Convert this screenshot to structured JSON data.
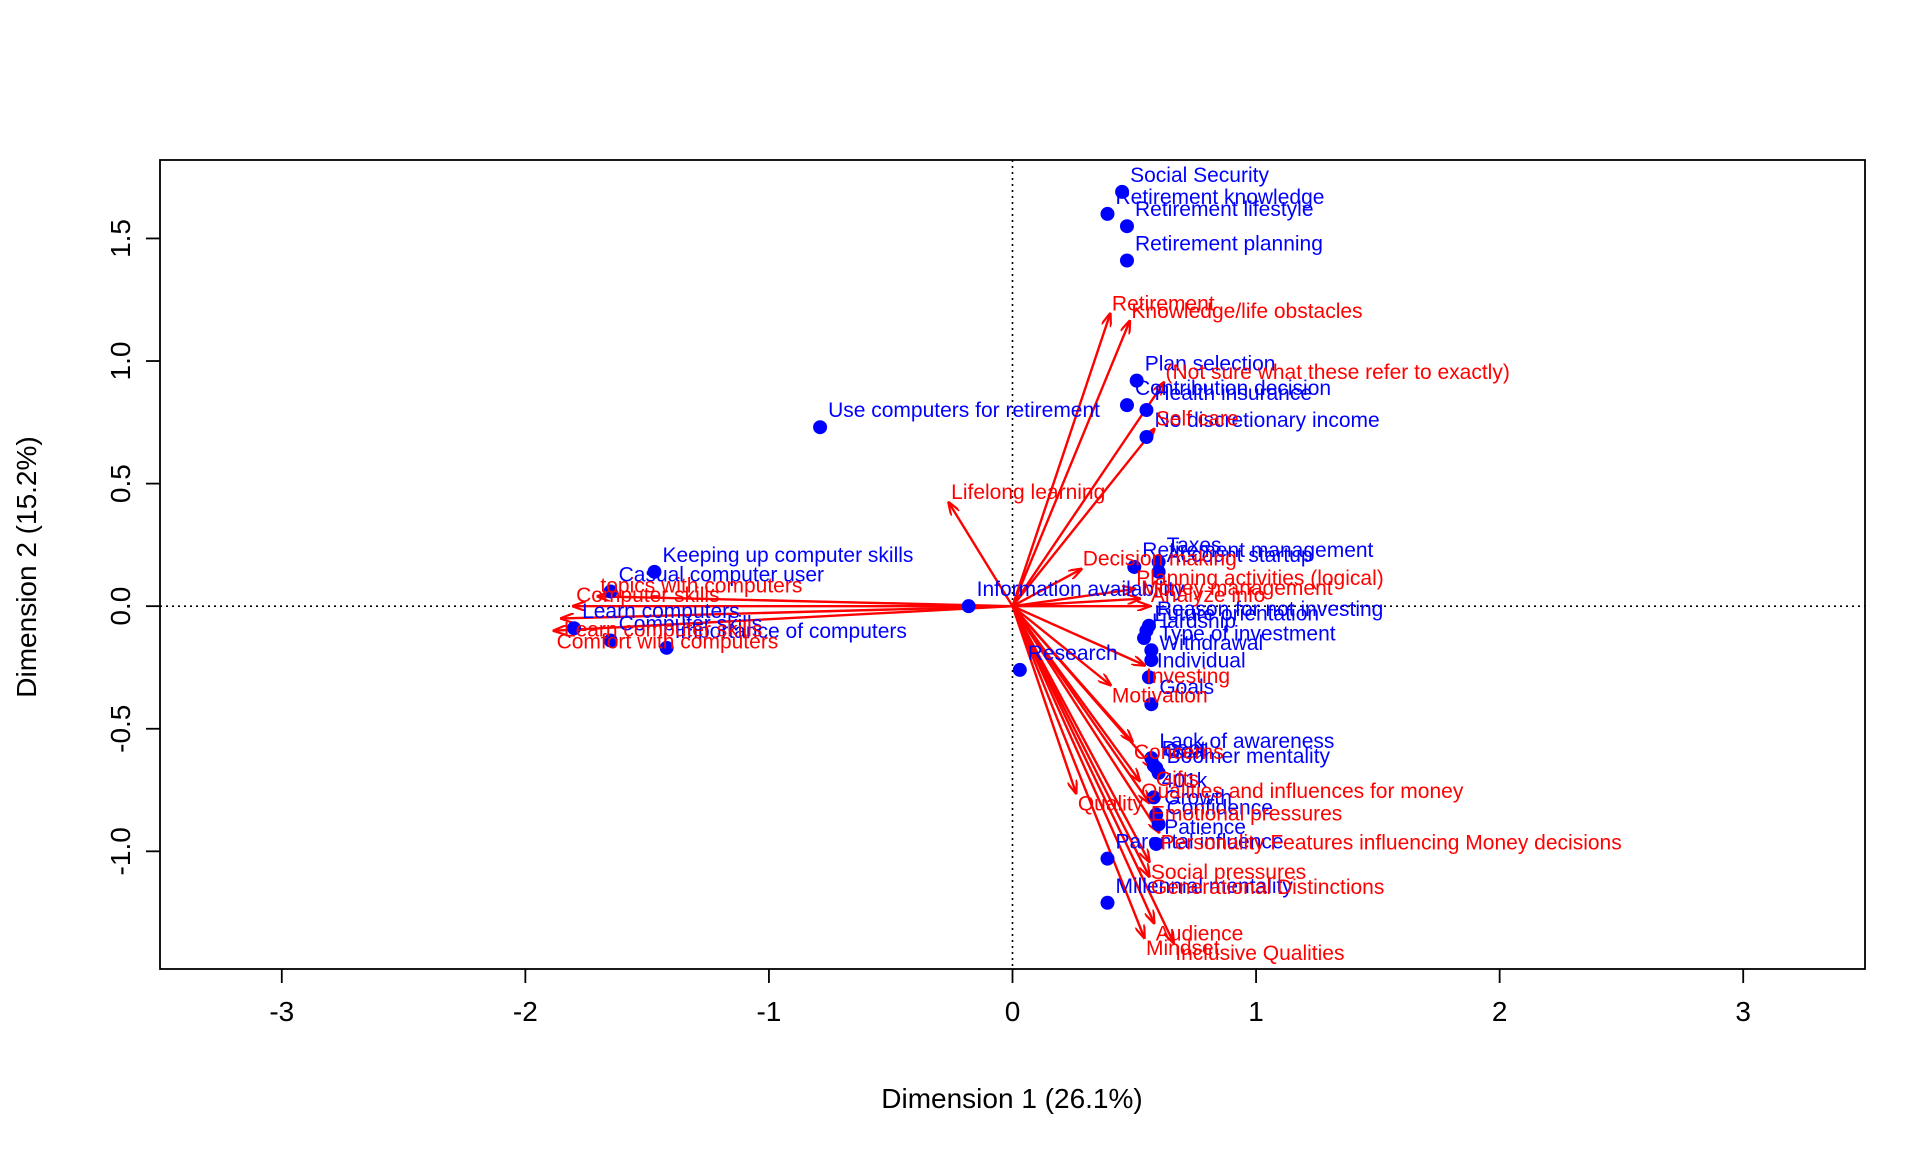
{
  "chart_data": {
    "type": "scatter",
    "title": "",
    "xlabel": "Dimension 1 (26.1%)",
    "ylabel": "Dimension 2 (15.2%)",
    "xlim": [
      -3.5,
      3.5
    ],
    "ylim": [
      -1.48,
      1.82
    ],
    "x_ticks": [
      -3,
      -2,
      -1,
      0,
      1,
      2,
      3
    ],
    "y_ticks": [
      -1.0,
      -0.5,
      0.0,
      0.5,
      1.0,
      1.5
    ],
    "x_tick_labels": [
      "-3",
      "-2",
      "-1",
      "0",
      "1",
      "2",
      "3"
    ],
    "y_tick_labels": [
      "-1.0",
      "-0.5",
      "0.0",
      "0.5",
      "1.0",
      "1.5"
    ],
    "reference_lines": {
      "x": 0,
      "y": 0,
      "style": "dotted"
    },
    "grid": false,
    "legend": "none",
    "colors": {
      "points": "#0000ff",
      "vectors": "#ff0000",
      "axes": "#000000"
    },
    "series": [
      {
        "kind": "points",
        "points": [
          {
            "label": "Social Security",
            "x": 0.45,
            "y": 1.69
          },
          {
            "label": "Retirement knowledge",
            "x": 0.39,
            "y": 1.6
          },
          {
            "label": "Retirement lifestyle",
            "x": 0.47,
            "y": 1.55
          },
          {
            "label": "Retirement planning",
            "x": 0.47,
            "y": 1.41
          },
          {
            "label": "Plan selection",
            "x": 0.51,
            "y": 0.92
          },
          {
            "label": "Contribution decision",
            "x": 0.47,
            "y": 0.82
          },
          {
            "label": "Health insurance",
            "x": 0.55,
            "y": 0.8
          },
          {
            "label": "No discretionary income",
            "x": 0.55,
            "y": 0.69
          },
          {
            "label": "Use computers for retirement",
            "x": -0.79,
            "y": 0.73
          },
          {
            "label": "Keeping up computer skills",
            "x": -1.47,
            "y": 0.14
          },
          {
            "label": "Casual computer user",
            "x": -1.65,
            "y": 0.06
          },
          {
            "label": "Information availability",
            "x": -0.18,
            "y": 0.0
          },
          {
            "label": "Taxes",
            "x": 0.6,
            "y": 0.18
          },
          {
            "label": "Retirement management",
            "x": 0.5,
            "y": 0.16
          },
          {
            "label": "Account startup",
            "x": 0.6,
            "y": 0.14
          },
          {
            "label": "Reason for not investing",
            "x": 0.56,
            "y": -0.08
          },
          {
            "label": "Future orientation",
            "x": 0.55,
            "y": -0.1
          },
          {
            "label": "Hardship",
            "x": 0.54,
            "y": -0.13
          },
          {
            "label": "Type of investment",
            "x": 0.57,
            "y": -0.18
          },
          {
            "label": "Withdrawal",
            "x": 0.57,
            "y": -0.22
          },
          {
            "label": "Individual",
            "x": 0.56,
            "y": -0.29
          },
          {
            "label": "Goals",
            "x": 0.57,
            "y": -0.4
          },
          {
            "label": "Research",
            "x": 0.03,
            "y": -0.26
          },
          {
            "label": "Importance of computers",
            "x": -1.42,
            "y": -0.17
          },
          {
            "label": "Computer skills",
            "x": -1.65,
            "y": -0.14
          },
          {
            "label": "Learn computers",
            "x": -1.8,
            "y": -0.09
          },
          {
            "label": "Lack of awareness",
            "x": 0.57,
            "y": -0.62
          },
          {
            "label": "Debt",
            "x": 0.58,
            "y": -0.65
          },
          {
            "label": "Goal",
            "x": 0.59,
            "y": -0.66
          },
          {
            "label": "Boomer mentality",
            "x": 0.6,
            "y": -0.68
          },
          {
            "label": "401k",
            "x": 0.58,
            "y": -0.78
          },
          {
            "label": "Growth",
            "x": 0.59,
            "y": -0.85
          },
          {
            "label": "Confidence",
            "x": 0.6,
            "y": -0.89
          },
          {
            "label": "Patience",
            "x": 0.59,
            "y": -0.97
          },
          {
            "label": "Parental influence",
            "x": 0.39,
            "y": -1.03
          },
          {
            "label": "Millennial mentality",
            "x": 0.39,
            "y": -1.21
          }
        ]
      },
      {
        "kind": "vectors",
        "vectors": [
          {
            "label": "Retirement",
            "x": 0.4,
            "y": 1.19
          },
          {
            "label": "Knowledge/life obstacles",
            "x": 0.48,
            "y": 1.16
          },
          {
            "label": "(Not sure what these refer to exactly)",
            "x": 0.62,
            "y": 0.91
          },
          {
            "label": "Self care",
            "x": 0.58,
            "y": 0.72
          },
          {
            "label": "Lifelong learning",
            "x": -0.26,
            "y": 0.42
          },
          {
            "label": "Decision making",
            "x": 0.28,
            "y": 0.15
          },
          {
            "label": "Planning activities (logical)",
            "x": 0.5,
            "y": 0.07
          },
          {
            "label": "Money management",
            "x": 0.52,
            "y": 0.03
          },
          {
            "label": "Analyze info",
            "x": 0.56,
            "y": 0.0
          },
          {
            "label": "topics with computers",
            "x": -1.7,
            "y": 0.04
          },
          {
            "label": "Computer skills",
            "x": -1.8,
            "y": 0.0
          },
          {
            "label": "Learn computer skills",
            "x": -1.85,
            "y": -0.05
          },
          {
            "label": "Comfort with computers",
            "x": -1.88,
            "y": -0.1
          },
          {
            "label": "Investing",
            "x": 0.54,
            "y": -0.24
          },
          {
            "label": "Motivation",
            "x": 0.4,
            "y": -0.32
          },
          {
            "label": "Concerns",
            "x": 0.49,
            "y": -0.55
          },
          {
            "label": "Gifts",
            "x": 0.58,
            "y": -0.66
          },
          {
            "label": "Qualities and influences for money",
            "x": 0.52,
            "y": -0.71
          },
          {
            "label": "Quality",
            "x": 0.26,
            "y": -0.76
          },
          {
            "label": "Emotional pressures",
            "x": 0.56,
            "y": -0.8
          },
          {
            "label": "Personality Features influencing Money decisions",
            "x": 0.6,
            "y": -0.92
          },
          {
            "label": "Social pressures",
            "x": 0.56,
            "y": -1.04
          },
          {
            "label": "Generational Distinctions",
            "x": 0.56,
            "y": -1.1
          },
          {
            "label": "Audience",
            "x": 0.58,
            "y": -1.29
          },
          {
            "label": "Mindset",
            "x": 0.54,
            "y": -1.35
          },
          {
            "label": "Inclusive Qualities",
            "x": 0.66,
            "y": -1.37
          }
        ]
      }
    ]
  }
}
